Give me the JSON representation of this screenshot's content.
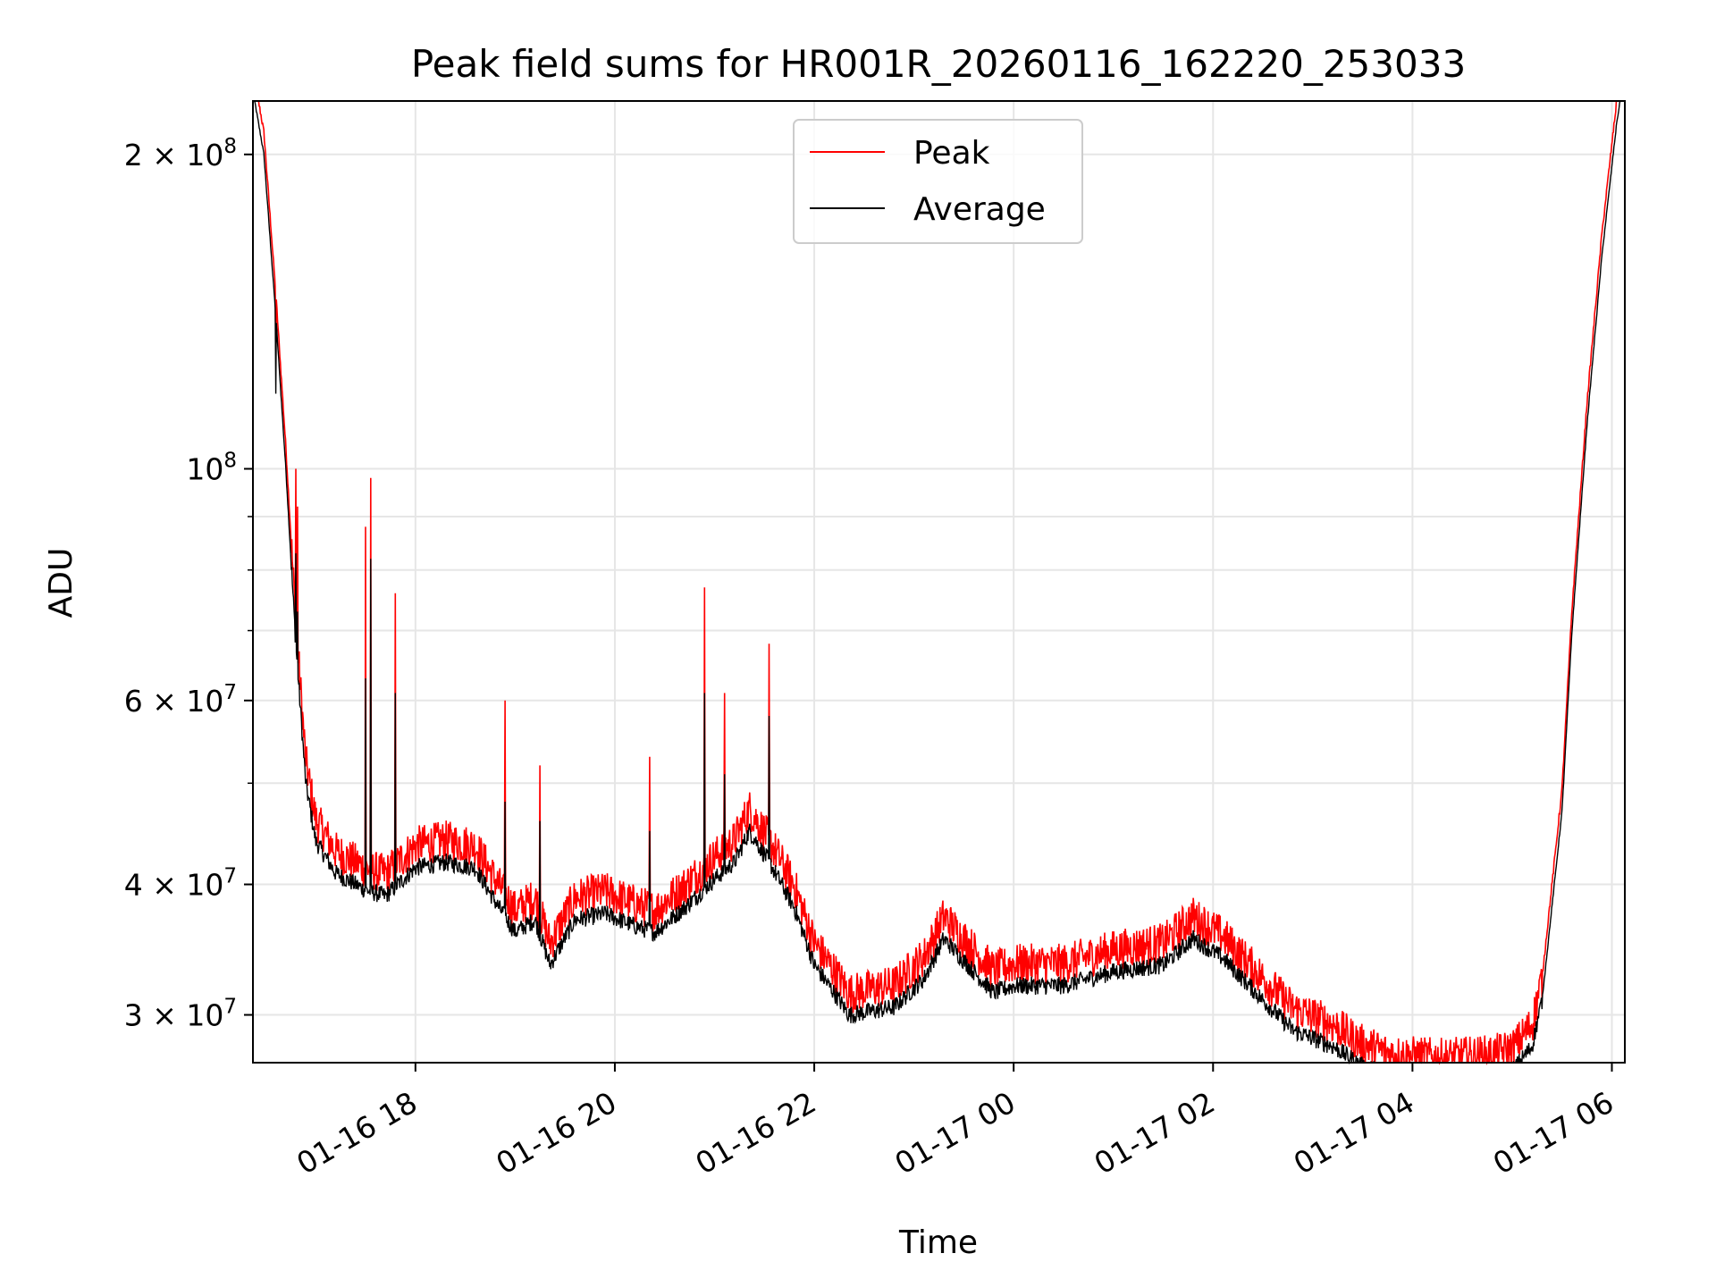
{
  "chart_data": {
    "type": "line",
    "title": "Peak field sums for HR001R_20260116_162220_253033",
    "xlabel": "Time",
    "ylabel": "ADU",
    "yscale": "log",
    "grid": true,
    "legend_position": "upper-center",
    "xlim_hours": [
      16.37,
      30.13
    ],
    "ylim": [
      27000000,
      225000000
    ],
    "x_ticks": [
      {
        "hour": 18,
        "label": "01-16 18"
      },
      {
        "hour": 20,
        "label": "01-16 20"
      },
      {
        "hour": 22,
        "label": "01-16 22"
      },
      {
        "hour": 24,
        "label": "01-17 00"
      },
      {
        "hour": 26,
        "label": "01-17 02"
      },
      {
        "hour": 28,
        "label": "01-17 04"
      },
      {
        "hour": 30,
        "label": "01-17 06"
      }
    ],
    "y_ticks": [
      {
        "value": 30000000,
        "mant": "3",
        "exp": "7"
      },
      {
        "value": 40000000,
        "mant": "4",
        "exp": "7"
      },
      {
        "value": 60000000,
        "mant": "6",
        "exp": "7"
      },
      {
        "value": 100000000,
        "mant": "",
        "exp": "8"
      },
      {
        "value": 200000000,
        "mant": "2",
        "exp": "8"
      }
    ],
    "times_symbol": "×",
    "base": "10",
    "series": [
      {
        "name": "Peak",
        "color": "#ff0000",
        "offset_factor": 1.05
      },
      {
        "name": "Average",
        "color": "#000000",
        "offset_factor": 1.0
      }
    ],
    "baseline_points": [
      [
        16.37,
        230000000
      ],
      [
        16.48,
        200000000
      ],
      [
        16.6,
        140000000
      ],
      [
        16.7,
        100000000
      ],
      [
        16.8,
        68000000
      ],
      [
        16.9,
        50000000
      ],
      [
        17.0,
        44000000
      ],
      [
        17.2,
        41000000
      ],
      [
        17.5,
        39500000
      ],
      [
        17.7,
        39000000
      ],
      [
        18.0,
        41500000
      ],
      [
        18.3,
        42000000
      ],
      [
        18.6,
        41500000
      ],
      [
        18.8,
        38500000
      ],
      [
        19.0,
        36000000
      ],
      [
        19.2,
        37000000
      ],
      [
        19.35,
        33500000
      ],
      [
        19.6,
        37000000
      ],
      [
        19.9,
        37500000
      ],
      [
        20.2,
        36500000
      ],
      [
        20.4,
        36000000
      ],
      [
        20.7,
        38000000
      ],
      [
        21.0,
        40500000
      ],
      [
        21.2,
        42000000
      ],
      [
        21.35,
        45000000
      ],
      [
        21.55,
        42000000
      ],
      [
        21.8,
        38000000
      ],
      [
        22.0,
        33500000
      ],
      [
        22.2,
        31500000
      ],
      [
        22.35,
        30000000
      ],
      [
        22.8,
        30500000
      ],
      [
        23.1,
        32500000
      ],
      [
        23.3,
        35500000
      ],
      [
        23.6,
        33000000
      ],
      [
        23.8,
        31500000
      ],
      [
        24.0,
        32000000
      ],
      [
        24.5,
        32000000
      ],
      [
        25.0,
        33000000
      ],
      [
        25.5,
        33500000
      ],
      [
        25.8,
        35500000
      ],
      [
        26.1,
        34000000
      ],
      [
        26.5,
        31000000
      ],
      [
        26.8,
        29000000
      ],
      [
        27.2,
        28000000
      ],
      [
        27.5,
        26800000
      ],
      [
        27.8,
        26200000
      ],
      [
        28.3,
        26000000
      ],
      [
        28.8,
        26200000
      ],
      [
        29.0,
        26500000
      ],
      [
        29.2,
        28000000
      ],
      [
        29.3,
        31000000
      ],
      [
        29.5,
        47000000
      ],
      [
        29.6,
        70000000
      ],
      [
        29.75,
        110000000
      ],
      [
        29.9,
        160000000
      ],
      [
        30.05,
        215000000
      ],
      [
        30.13,
        240000000
      ]
    ],
    "peak_spikes": [
      [
        16.6,
        130000000
      ],
      [
        16.8,
        100000000
      ],
      [
        16.82,
        92000000
      ],
      [
        17.5,
        88000000
      ],
      [
        17.55,
        98000000
      ],
      [
        17.8,
        76000000
      ],
      [
        18.9,
        60000000
      ],
      [
        19.25,
        52000000
      ],
      [
        20.35,
        53000000
      ],
      [
        20.9,
        77000000
      ],
      [
        21.1,
        61000000
      ],
      [
        21.55,
        68000000
      ]
    ],
    "average_spikes": [
      [
        16.6,
        118000000
      ],
      [
        16.8,
        83000000
      ],
      [
        16.82,
        73000000
      ],
      [
        17.5,
        63000000
      ],
      [
        17.55,
        82000000
      ],
      [
        17.8,
        61000000
      ],
      [
        18.9,
        48000000
      ],
      [
        19.25,
        46000000
      ],
      [
        20.35,
        45000000
      ],
      [
        20.9,
        61000000
      ],
      [
        21.1,
        51000000
      ],
      [
        21.55,
        58000000
      ]
    ]
  }
}
